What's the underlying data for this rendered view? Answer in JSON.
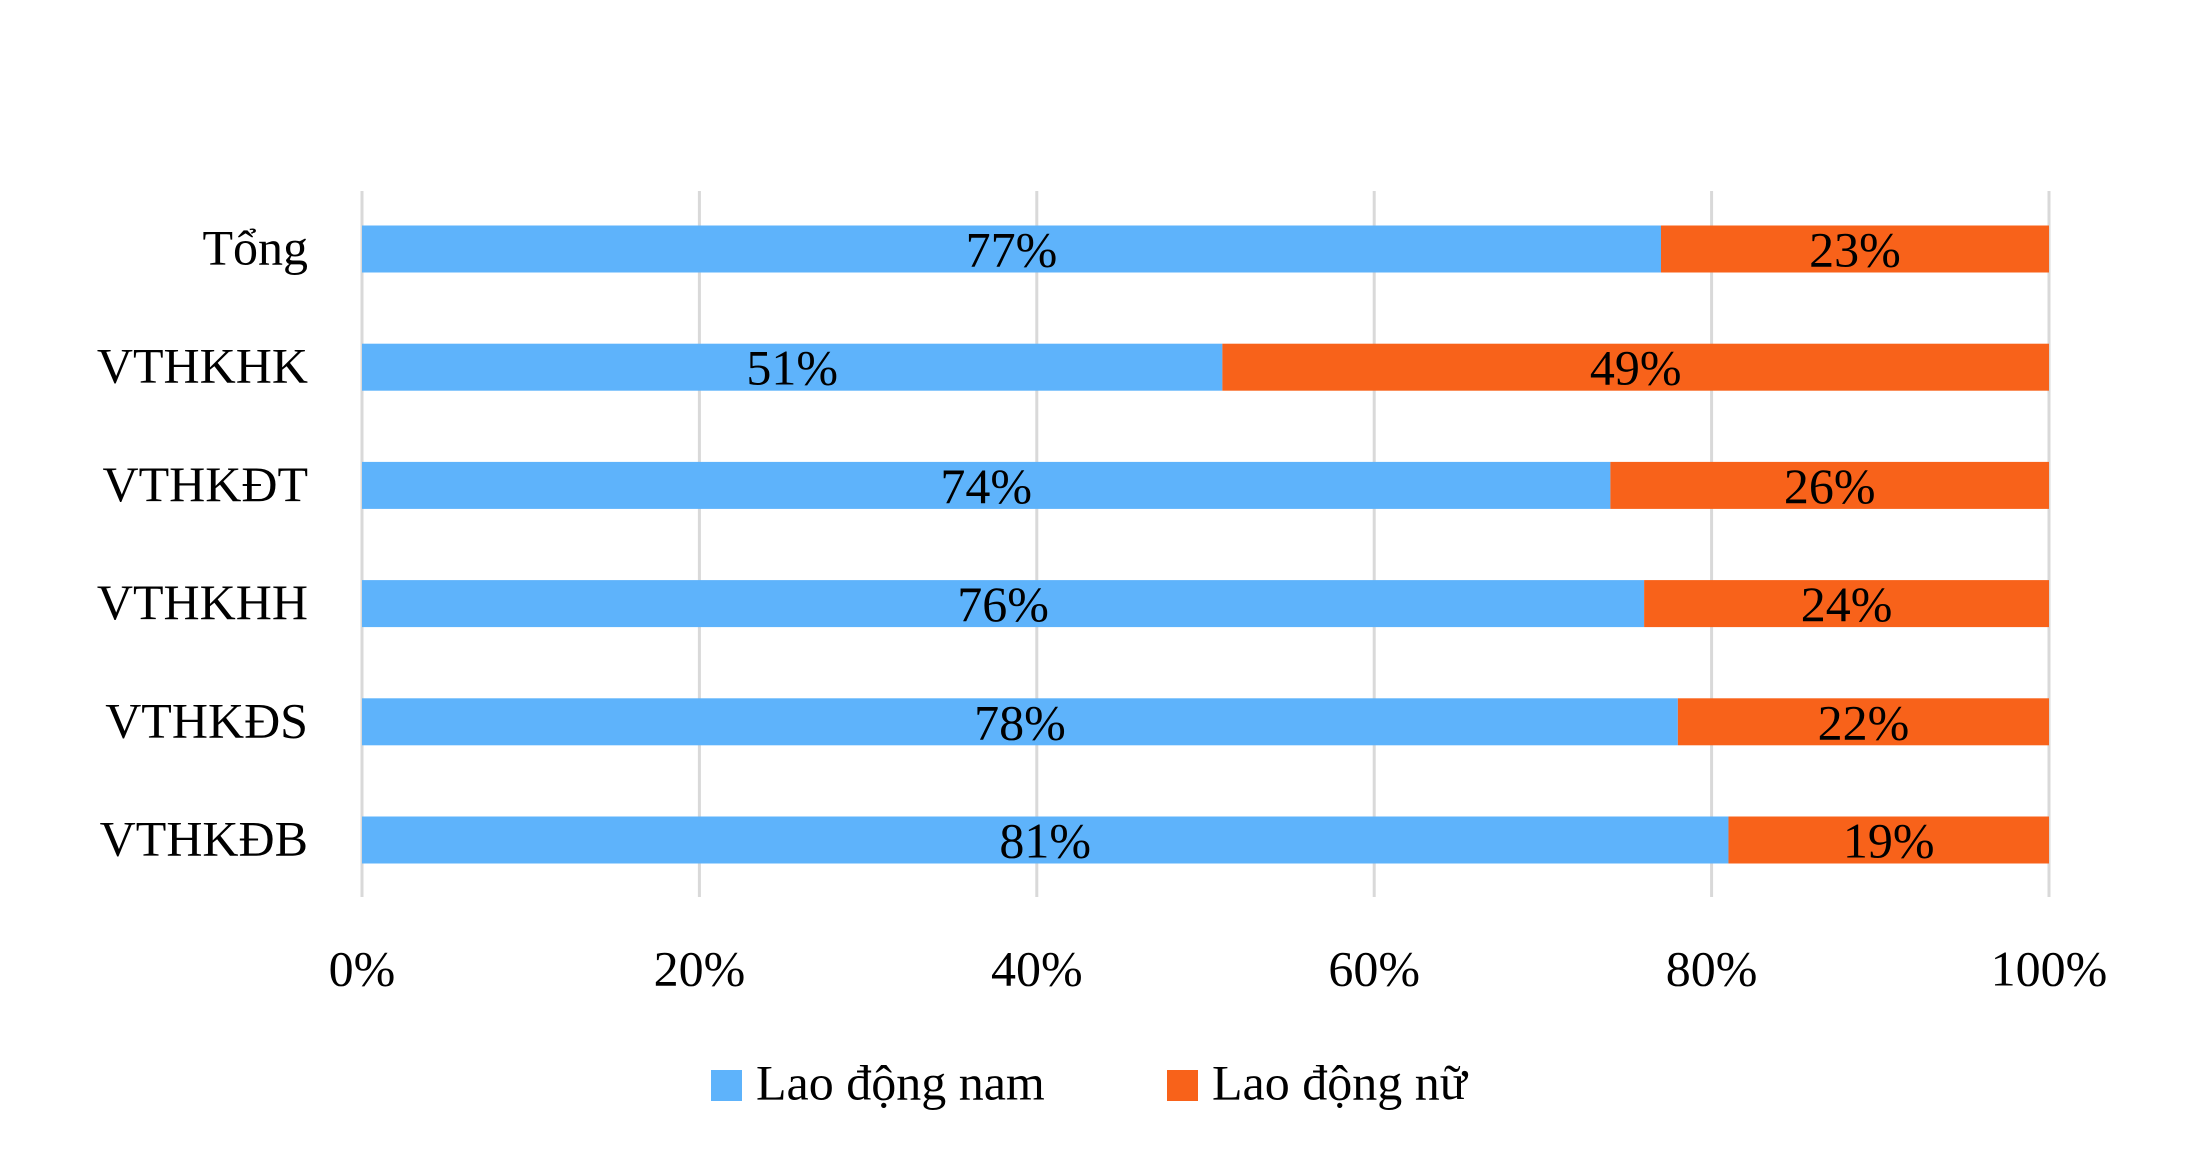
{
  "chart_data": {
    "type": "stacked-bar-horizontal",
    "categories": [
      "Tổng",
      "VTHKHK",
      "VTHKĐT",
      "VTHKHH",
      "VTHKĐS",
      "VTHKĐB"
    ],
    "series": [
      {
        "name": "Lao động nam",
        "color": "#5eb3fb",
        "values": [
          77,
          51,
          74,
          76,
          78,
          81
        ],
        "value_labels": [
          "77%",
          "51%",
          "74%",
          "76%",
          "78%",
          "81%"
        ]
      },
      {
        "name": "Lao động nữ",
        "color": "#f8621a",
        "values": [
          23,
          49,
          26,
          24,
          22,
          19
        ],
        "value_labels": [
          "23%",
          "49%",
          "26%",
          "24%",
          "22%",
          "19%"
        ]
      }
    ],
    "xlim": [
      0,
      100
    ],
    "xticks": [
      {
        "value": 0,
        "label": "0%"
      },
      {
        "value": 20,
        "label": "20%"
      },
      {
        "value": 40,
        "label": "40%"
      },
      {
        "value": 60,
        "label": "60%"
      },
      {
        "value": 80,
        "label": "80%"
      },
      {
        "value": 100,
        "label": "100%"
      }
    ],
    "grid": true,
    "legend": "bottom"
  }
}
